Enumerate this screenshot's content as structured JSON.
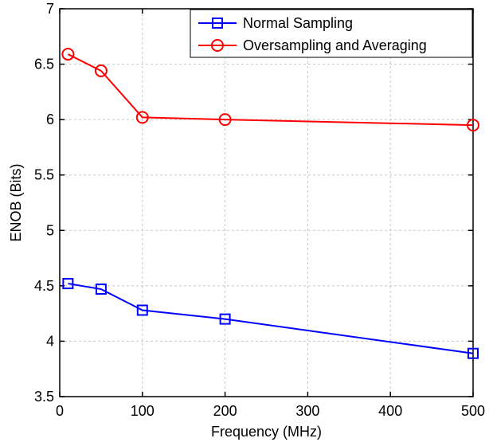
{
  "chart_data": {
    "type": "line",
    "xlabel": "Frequency (MHz)",
    "ylabel": "ENOB (Bits)",
    "xlim": [
      0,
      500
    ],
    "ylim": [
      3.5,
      7
    ],
    "x_ticks": [
      0,
      100,
      200,
      300,
      400,
      500
    ],
    "x_tick_labels": [
      "0",
      "100",
      "200",
      "300",
      "400",
      "500"
    ],
    "y_ticks": [
      3.5,
      4,
      4.5,
      5,
      5.5,
      6,
      6.5,
      7
    ],
    "y_tick_labels": [
      "3.5",
      "4",
      "4.5",
      "5",
      "5.5",
      "6",
      "6.5",
      "7"
    ],
    "grid": true,
    "legend_position": "top-right",
    "x": [
      10,
      50,
      100,
      200,
      500
    ],
    "series": [
      {
        "name": "Normal Sampling",
        "color": "#0000ff",
        "marker": "square",
        "values": [
          4.52,
          4.47,
          4.28,
          4.2,
          3.89
        ]
      },
      {
        "name": "Oversampling and Averaging",
        "color": "#ff0000",
        "marker": "circle",
        "values": [
          6.59,
          6.44,
          6.02,
          6.0,
          5.95
        ]
      }
    ]
  }
}
